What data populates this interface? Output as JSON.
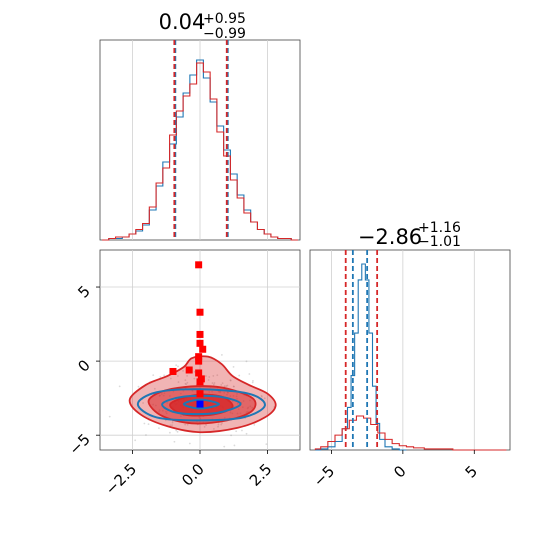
{
  "chart_data": [
    {
      "type": "histogram",
      "panel": "top-left marginal (parameter 1)",
      "title_center": "0.04",
      "title_plus": "+0.95",
      "title_minus": "−0.99",
      "xlim": [
        -3.7,
        3.7
      ],
      "grid": true,
      "series": [
        {
          "color": "#1f77b4",
          "bins_center": [
            -3.5,
            -3.25,
            -3.0,
            -2.75,
            -2.5,
            -2.25,
            -2.0,
            -1.75,
            -1.5,
            -1.25,
            -1.0,
            -0.75,
            -0.5,
            -0.25,
            0.0,
            0.25,
            0.5,
            0.75,
            1.0,
            1.25,
            1.5,
            1.75,
            2.0,
            2.25,
            2.5,
            2.75,
            3.0,
            3.25,
            3.5
          ],
          "counts": [
            0,
            1,
            1,
            2,
            4,
            6,
            10,
            20,
            36,
            52,
            64,
            82,
            98,
            110,
            120,
            108,
            92,
            76,
            60,
            44,
            30,
            20,
            12,
            7,
            4,
            2,
            1,
            1,
            0
          ]
        },
        {
          "color": "#d62728",
          "bins_center": [
            -3.5,
            -3.25,
            -3.0,
            -2.75,
            -2.5,
            -2.25,
            -2.0,
            -1.75,
            -1.5,
            -1.25,
            -1.0,
            -0.75,
            -0.5,
            -0.25,
            0.0,
            0.25,
            0.5,
            0.75,
            1.0,
            1.25,
            1.5,
            1.75,
            2.0,
            2.25,
            2.5,
            2.75,
            3.0,
            3.25,
            3.5
          ],
          "counts": [
            0,
            1,
            2,
            2,
            4,
            7,
            11,
            22,
            38,
            48,
            70,
            86,
            96,
            104,
            118,
            112,
            94,
            72,
            56,
            40,
            28,
            18,
            12,
            7,
            4,
            2,
            1,
            1,
            0
          ]
        }
      ],
      "quantile_lines": [
        {
          "x": -0.95,
          "color": "#1f77b4"
        },
        {
          "x": -0.95,
          "color": "#d62728"
        },
        {
          "x": 0.99,
          "color": "#1f77b4"
        },
        {
          "x": 0.99,
          "color": "#d62728"
        }
      ]
    },
    {
      "type": "histogram",
      "panel": "bottom-right marginal (parameter 2)",
      "title_center": "−2.86",
      "title_plus": "+1.16",
      "title_minus": "−1.01",
      "xlim": [
        -6.5,
        7.5
      ],
      "xticks": [
        -5,
        0,
        5
      ],
      "xtick_labels": [
        "−5",
        "0",
        "5"
      ],
      "grid": true,
      "series": [
        {
          "color": "#1f77b4",
          "bins_center": [
            -6.0,
            -5.5,
            -5.0,
            -4.5,
            -4.0,
            -3.75,
            -3.5,
            -3.25,
            -3.0,
            -2.75,
            -2.5,
            -2.25,
            -2.0,
            -1.75,
            -1.5,
            -1.0,
            -0.5,
            0.0
          ],
          "counts": [
            0,
            1,
            3,
            8,
            20,
            40,
            70,
            110,
            160,
            175,
            160,
            110,
            60,
            25,
            10,
            3,
            1,
            0
          ]
        },
        {
          "color": "#d62728",
          "bins_center": [
            -6.0,
            -5.5,
            -5.0,
            -4.5,
            -4.0,
            -3.5,
            -3.0,
            -2.5,
            -2.0,
            -1.5,
            -1.0,
            -0.5,
            0.0,
            0.5,
            1.0,
            2.0,
            3.0,
            4.0,
            5.0,
            6.0,
            7.0
          ],
          "counts": [
            1,
            3,
            8,
            14,
            20,
            28,
            32,
            30,
            24,
            16,
            10,
            6,
            4,
            3,
            2,
            1,
            1,
            0,
            0,
            0,
            0
          ]
        }
      ],
      "quantile_lines": [
        {
          "x": -4.0,
          "color": "#d62728"
        },
        {
          "x": -3.5,
          "color": "#1f77b4"
        },
        {
          "x": -2.5,
          "color": "#1f77b4"
        },
        {
          "x": -1.8,
          "color": "#d62728"
        }
      ]
    },
    {
      "type": "scatter",
      "panel": "bottom-left 2D density (parameter 1 vs parameter 2)",
      "xlim": [
        -3.7,
        3.7
      ],
      "ylim": [
        -6.0,
        7.5
      ],
      "xticks": [
        -2.5,
        0.0,
        2.5
      ],
      "xtick_labels": [
        "−2.5",
        "0.0",
        "2.5"
      ],
      "yticks": [
        -5,
        0,
        5
      ],
      "ytick_labels": [
        "−5",
        "0",
        "5"
      ],
      "grid": true,
      "contours": [
        {
          "color": "#d62728",
          "level": "outer",
          "fill_opacity": 0.35,
          "points": [
            [
              -2.6,
              -2.6
            ],
            [
              -2.2,
              -3.6
            ],
            [
              -1.2,
              -4.4
            ],
            [
              0.0,
              -4.8
            ],
            [
              1.4,
              -4.5
            ],
            [
              2.4,
              -3.8
            ],
            [
              2.8,
              -3.0
            ],
            [
              2.5,
              -2.2
            ],
            [
              1.8,
              -1.6
            ],
            [
              1.2,
              -1.0
            ],
            [
              0.8,
              -0.2
            ],
            [
              0.3,
              0.3
            ],
            [
              -0.3,
              0.2
            ],
            [
              -0.6,
              -0.4
            ],
            [
              -1.2,
              -1.0
            ],
            [
              -2.0,
              -1.6
            ]
          ]
        },
        {
          "color": "#d62728",
          "level": "middle",
          "fill_opacity": 0.55,
          "points": [
            [
              -1.9,
              -2.8
            ],
            [
              -1.4,
              -3.7
            ],
            [
              -0.3,
              -4.2
            ],
            [
              1.0,
              -4.0
            ],
            [
              1.9,
              -3.4
            ],
            [
              2.0,
              -2.6
            ],
            [
              1.3,
              -2.0
            ],
            [
              0.4,
              -1.7
            ],
            [
              -0.8,
              -1.8
            ],
            [
              -1.6,
              -2.2
            ]
          ]
        },
        {
          "color": "#d62728",
          "level": "inner",
          "fill_opacity": 0.8,
          "points": [
            [
              -1.1,
              -2.9
            ],
            [
              -0.6,
              -3.6
            ],
            [
              0.5,
              -3.6
            ],
            [
              1.2,
              -3.1
            ],
            [
              0.8,
              -2.4
            ],
            [
              -0.2,
              -2.3
            ]
          ]
        },
        {
          "color": "#1f77b4",
          "level": "outer",
          "fill_opacity": 0,
          "points": [
            [
              -2.3,
              -2.9
            ],
            [
              -1.6,
              -3.8
            ],
            [
              0.0,
              -4.0
            ],
            [
              1.6,
              -3.8
            ],
            [
              2.4,
              -3.0
            ],
            [
              1.8,
              -2.2
            ],
            [
              0.0,
              -1.9
            ],
            [
              -1.6,
              -2.1
            ]
          ]
        },
        {
          "color": "#1f77b4",
          "level": "middle",
          "fill_opacity": 0,
          "points": [
            [
              -1.4,
              -2.9
            ],
            [
              -0.8,
              -3.5
            ],
            [
              0.6,
              -3.5
            ],
            [
              1.5,
              -2.9
            ],
            [
              0.7,
              -2.4
            ],
            [
              -0.6,
              -2.4
            ]
          ]
        },
        {
          "color": "#1f77b4",
          "level": "inner",
          "fill_opacity": 0,
          "points": [
            [
              -0.6,
              -2.9
            ],
            [
              0.0,
              -3.2
            ],
            [
              0.7,
              -2.9
            ],
            [
              0.0,
              -2.6
            ]
          ]
        }
      ],
      "markers": [
        {
          "color": "#ff0000",
          "points": [
            [
              -0.05,
              6.5
            ],
            [
              0.0,
              3.3
            ],
            [
              0.0,
              1.8
            ],
            [
              0.0,
              1.2
            ],
            [
              0.1,
              0.8
            ],
            [
              -0.05,
              0.3
            ],
            [
              -0.05,
              0.0
            ],
            [
              -0.4,
              -0.6
            ],
            [
              -1.0,
              -0.7
            ],
            [
              -0.05,
              -0.8
            ],
            [
              0.05,
              -1.2
            ],
            [
              0.0,
              -1.4
            ],
            [
              0.0,
              -2.2
            ]
          ]
        },
        {
          "color": "#0000ff",
          "points": [
            [
              0.0,
              -2.9
            ]
          ]
        }
      ]
    }
  ]
}
